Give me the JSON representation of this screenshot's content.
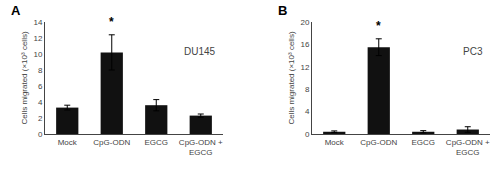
{
  "chart_data": [
    {
      "type": "bar",
      "title": "DU145",
      "categories": [
        "Mock",
        "CpG-ODN",
        "EGCG",
        "CpG-ODN +\nEGCG"
      ],
      "values": [
        3.3,
        10.2,
        3.6,
        2.3
      ],
      "errors": [
        0.3,
        2.2,
        0.7,
        0.2
      ],
      "color": "#111111",
      "ylim": [
        0,
        14
      ],
      "yticks": [
        0,
        2,
        4,
        6,
        8,
        10,
        12,
        14
      ],
      "ylabel": "Cells migrated (×10³ cells)",
      "grid": false,
      "annotations": [
        {
          "text": "A"
        },
        {
          "text": "*",
          "category": "CpG-ODN"
        }
      ]
    },
    {
      "type": "bar",
      "title": "PC3",
      "categories": [
        "Mock",
        "CpG-ODN",
        "EGCG",
        "CpG-ODN +\nEGCG"
      ],
      "values": [
        0.4,
        15.5,
        0.4,
        0.8
      ],
      "errors": [
        0.15,
        1.5,
        0.2,
        0.5
      ],
      "color": "#111111",
      "ylim": [
        0,
        20
      ],
      "yticks": [
        0,
        4,
        8,
        12,
        16,
        20
      ],
      "ylabel": "Cells migrated (×10³ cells)",
      "grid": false,
      "annotations": [
        {
          "text": "B"
        },
        {
          "text": "*",
          "category": "CpG-ODN"
        }
      ]
    }
  ]
}
